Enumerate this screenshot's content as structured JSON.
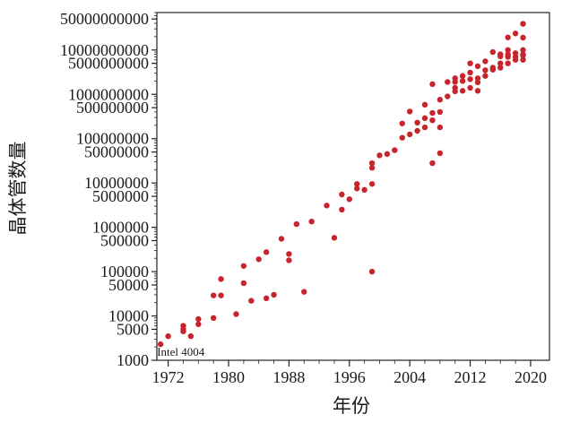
{
  "chart_data": {
    "type": "scatter",
    "title": "",
    "xlabel": "年份",
    "ylabel": "晶体管数量",
    "x_scale": "linear",
    "y_scale": "log",
    "xlim": [
      1970.5,
      2022.5
    ],
    "ylim": [
      1000,
      70000000000
    ],
    "grid": false,
    "legend": "none",
    "marker_color": "#c8242b",
    "x_ticks": [
      1972,
      1980,
      1988,
      1996,
      2004,
      2012,
      2020
    ],
    "x_tick_labels": [
      "1972",
      "1980",
      "1988",
      "1996",
      "2004",
      "2012",
      "2020"
    ],
    "y_ticks": [
      1000,
      5000,
      10000,
      50000,
      100000,
      500000,
      1000000,
      5000000,
      10000000,
      50000000,
      100000000,
      500000000,
      1000000000,
      5000000000,
      10000000000,
      50000000000
    ],
    "y_tick_labels": [
      "1000",
      "5000",
      "10000",
      "50000",
      "100000",
      "500000",
      "1000000",
      "5000000",
      "10000000",
      "50000000",
      "100000000",
      "500000000",
      "1000000000",
      "5000000000",
      "10000000000",
      "50000000000"
    ],
    "annotations": [
      {
        "text": "Intel 4004",
        "x": 1971,
        "y": 2300
      }
    ],
    "points": [
      [
        1971,
        2300
      ],
      [
        1972,
        3500
      ],
      [
        1974,
        4500
      ],
      [
        1974,
        6000
      ],
      [
        1974,
        5000
      ],
      [
        1975,
        3500
      ],
      [
        1976,
        6500
      ],
      [
        1976,
        8500
      ],
      [
        1978,
        9000
      ],
      [
        1978,
        29000
      ],
      [
        1979,
        29000
      ],
      [
        1979,
        68000
      ],
      [
        1981,
        11000
      ],
      [
        1982,
        55000
      ],
      [
        1982,
        134000
      ],
      [
        1983,
        22000
      ],
      [
        1984,
        190000
      ],
      [
        1985,
        25000
      ],
      [
        1985,
        275000
      ],
      [
        1986,
        30000
      ],
      [
        1987,
        550000
      ],
      [
        1988,
        180000
      ],
      [
        1988,
        250000
      ],
      [
        1989,
        1180000
      ],
      [
        1990,
        35000
      ],
      [
        1991,
        1350000
      ],
      [
        1993,
        3100000
      ],
      [
        1994,
        580000
      ],
      [
        1995,
        2500000
      ],
      [
        1995,
        5500000
      ],
      [
        1996,
        4300000
      ],
      [
        1997,
        7500000
      ],
      [
        1997,
        9500000
      ],
      [
        1998,
        7000000
      ],
      [
        1999,
        9500000
      ],
      [
        1999,
        22000000
      ],
      [
        1999,
        28000000
      ],
      [
        1999,
        100000
      ],
      [
        2000,
        42000000
      ],
      [
        2001,
        45000000
      ],
      [
        2002,
        55000000
      ],
      [
        2003,
        105000000
      ],
      [
        2003,
        220000000
      ],
      [
        2004,
        125000000
      ],
      [
        2004,
        410000000
      ],
      [
        2005,
        230000000
      ],
      [
        2005,
        150000000
      ],
      [
        2006,
        290000000
      ],
      [
        2006,
        582000000
      ],
      [
        2006,
        180000000
      ],
      [
        2007,
        1700000000
      ],
      [
        2007,
        260000000
      ],
      [
        2007,
        380000000
      ],
      [
        2008,
        758000000
      ],
      [
        2008,
        400000000
      ],
      [
        2008,
        180000000
      ],
      [
        2008,
        47000000
      ],
      [
        2007,
        28000000
      ],
      [
        2009,
        1900000000
      ],
      [
        2009,
        900000000
      ],
      [
        2010,
        1170000000
      ],
      [
        2010,
        1900000000
      ],
      [
        2010,
        2300000000
      ],
      [
        2010,
        1400000000
      ],
      [
        2011,
        2600000000
      ],
      [
        2011,
        1200000000
      ],
      [
        2011,
        2000000000
      ],
      [
        2012,
        1400000000
      ],
      [
        2012,
        3100000000
      ],
      [
        2012,
        5000000000
      ],
      [
        2012,
        2200000000
      ],
      [
        2013,
        1860000000
      ],
      [
        2013,
        4300000000
      ],
      [
        2013,
        2300000000
      ],
      [
        2013,
        1200000000
      ],
      [
        2014,
        5560000000
      ],
      [
        2014,
        2600000000
      ],
      [
        2014,
        3500000000
      ],
      [
        2015,
        3600000000
      ],
      [
        2015,
        9000000000
      ],
      [
        2015,
        4000000000
      ],
      [
        2016,
        7200000000
      ],
      [
        2016,
        4000000000
      ],
      [
        2016,
        8000000000
      ],
      [
        2016,
        5000000000
      ],
      [
        2017,
        5000000000
      ],
      [
        2017,
        7000000000
      ],
      [
        2017,
        19200000000
      ],
      [
        2017,
        8000000000
      ],
      [
        2017,
        10000000000
      ],
      [
        2018,
        6000000000
      ],
      [
        2018,
        23600000000
      ],
      [
        2018,
        8500000000
      ],
      [
        2018,
        7000000000
      ],
      [
        2019,
        10000000000
      ],
      [
        2019,
        8000000000
      ],
      [
        2019,
        6000000000
      ],
      [
        2019,
        39000000000
      ],
      [
        2019,
        19000000000
      ],
      [
        2019,
        7500000000
      ]
    ]
  }
}
